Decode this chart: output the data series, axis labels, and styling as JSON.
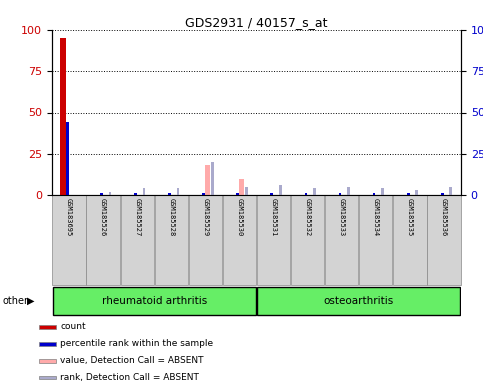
{
  "title": "GDS2931 / 40157_s_at",
  "samples": [
    "GSM183695",
    "GSM185526",
    "GSM185527",
    "GSM185528",
    "GSM185529",
    "GSM185530",
    "GSM185531",
    "GSM185532",
    "GSM185533",
    "GSM185534",
    "GSM185535",
    "GSM185536"
  ],
  "count_values": [
    95,
    0,
    0,
    0,
    0,
    0,
    0,
    0,
    0,
    0,
    0,
    0
  ],
  "percentile_values": [
    44,
    1,
    1,
    1,
    1,
    1,
    1,
    1,
    1,
    1,
    1,
    1
  ],
  "value_absent": [
    0,
    0,
    0,
    0,
    18,
    10,
    0,
    0,
    0,
    0,
    0,
    0
  ],
  "rank_absent": [
    0,
    2,
    4,
    4,
    20,
    5,
    6,
    4,
    5,
    4,
    3,
    5
  ],
  "ylim": [
    0,
    100
  ],
  "yticks": [
    0,
    25,
    50,
    75,
    100
  ],
  "count_color": "#cc0000",
  "percentile_color": "#0000cc",
  "value_absent_color": "#ffaaaa",
  "rank_absent_color": "#aaaacc",
  "group_color": "#66ee66",
  "tick_area_color": "#d3d3d3",
  "groups": [
    {
      "name": "rheumatoid arthritis",
      "start": 0,
      "end": 5
    },
    {
      "name": "osteoarthritis",
      "start": 6,
      "end": 11
    }
  ],
  "legend_items": [
    {
      "color": "#cc0000",
      "label": "count"
    },
    {
      "color": "#0000cc",
      "label": "percentile rank within the sample"
    },
    {
      "color": "#ffaaaa",
      "label": "value, Detection Call = ABSENT"
    },
    {
      "color": "#aaaacc",
      "label": "rank, Detection Call = ABSENT"
    }
  ],
  "other_label": "other"
}
